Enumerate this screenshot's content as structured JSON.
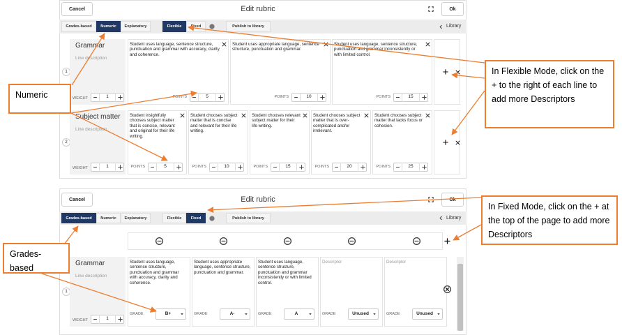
{
  "flexible_view": {
    "header": {
      "cancel": "Cancel",
      "title": "Edit rubric",
      "ok": "Ok"
    },
    "toolbar": {
      "tabs": [
        "Grades-based",
        "Numeric",
        "Explanatory"
      ],
      "modes": [
        "Flexible",
        "Fixed"
      ],
      "publish": "Publish to library",
      "library": "Library"
    },
    "rows": [
      {
        "number": 1,
        "name": "Grammar",
        "description": "Line description",
        "weight_label": "WEIGHT",
        "weight": 1,
        "descriptors": [
          {
            "text": "Student uses language, sentence structure, punctuation and grammar with accuracy, clarity and coherence.",
            "label": "POINTS",
            "value": 5
          },
          {
            "text": "Student uses appropriate language, sentence structure, punctuation and grammar.",
            "label": "POINTS",
            "value": 10
          },
          {
            "text": "Student uses language, sentence structure, punctuation and grammar inconsistently or with limited control.",
            "label": "POINTS",
            "value": 15
          }
        ]
      },
      {
        "number": 2,
        "name": "Subject matter",
        "description": "Line description",
        "weight_label": "WEIGHT",
        "weight": 1,
        "descriptors": [
          {
            "text": "Student insightfully chooses subject matter that is concise, relevant and original for their life writing.",
            "label": "POINTS",
            "value": 5
          },
          {
            "text": "Student chooses subject matter that is concise and relevant for their life writing.",
            "label": "POINTS",
            "value": 10
          },
          {
            "text": "Student chooses relevant subject matter for their life writing.",
            "label": "POINTS",
            "value": 15
          },
          {
            "text": "Student chooses subject matter that is over-complicated and/or irrelevant.",
            "label": "POINTS",
            "value": 20
          },
          {
            "text": "Student chooses subject matter that lacks focus or cohesion.",
            "label": "POINTS",
            "value": 25
          }
        ]
      }
    ]
  },
  "fixed_view": {
    "header": {
      "cancel": "Cancel",
      "title": "Edit rubric",
      "ok": "Ok"
    },
    "toolbar": {
      "tabs": [
        "Grades-based",
        "Numeric",
        "Explanatory"
      ],
      "modes": [
        "Flexible",
        "Fixed"
      ],
      "publish": "Publish to library",
      "library": "Library"
    },
    "rows": [
      {
        "number": 1,
        "name": "Grammar",
        "description": "Line description",
        "weight_label": "WEIGHT",
        "weight": 1,
        "descriptors": [
          {
            "text": "Student uses language, sentence structure, punctuation and grammar with accuracy, clarity and coherence.",
            "label": "GRADE",
            "grade": "B+"
          },
          {
            "text": "Student uses appropriate language, sentence structure, punctuation and grammar.",
            "label": "GRADE",
            "grade": "A-"
          },
          {
            "text": "Student uses language, sentence structure, punctuation and grammar inconsistently or with limited control.",
            "label": "GRADE",
            "grade": "A"
          },
          {
            "placeholder": "Descriptor",
            "label": "GRADE",
            "grade": "Unused"
          },
          {
            "placeholder": "Descriptor",
            "label": "GRADE",
            "grade": "Unused"
          }
        ]
      }
    ]
  },
  "callouts": [
    {
      "text": "Numeric"
    },
    {
      "text": "In Flexible Mode, click on the + to the right of each line to add more Descriptors"
    },
    {
      "text": "In Fixed Mode, click on the + at the top of the page to add more Descriptors"
    },
    {
      "text": "Grades-based"
    }
  ]
}
